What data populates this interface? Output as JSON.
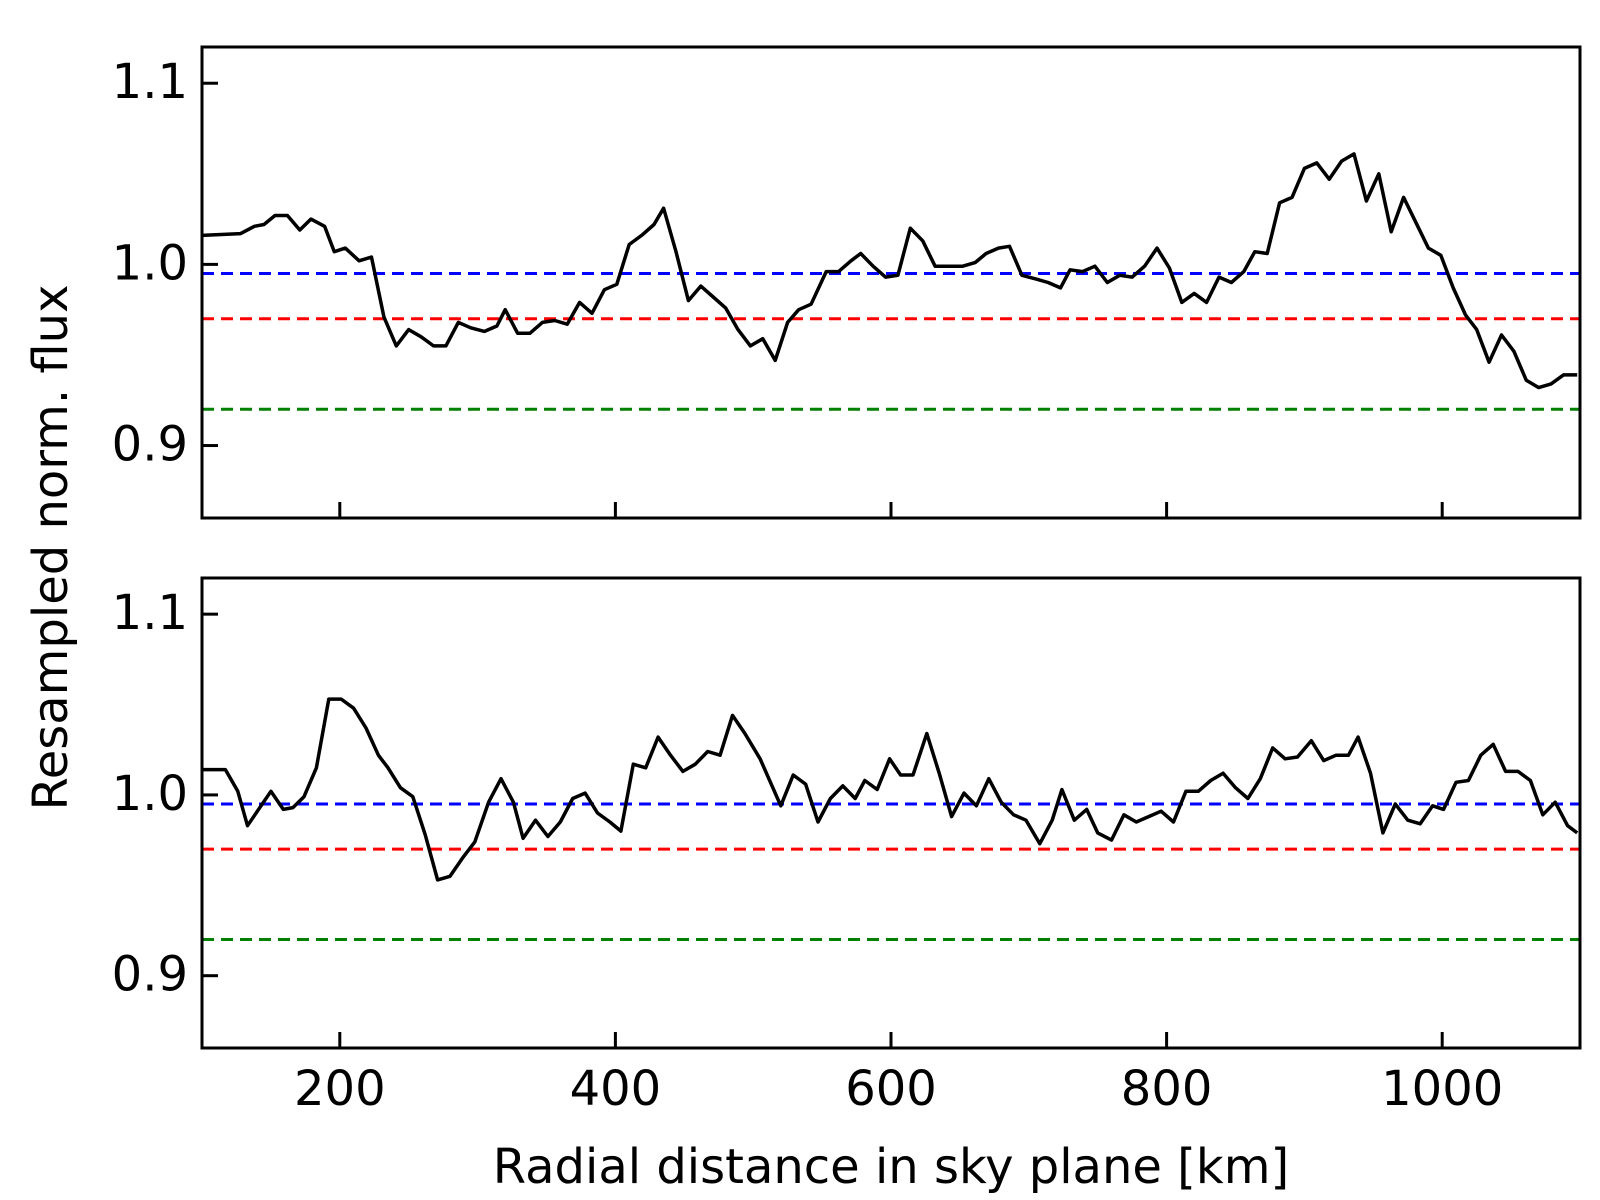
{
  "chart_data": [
    {
      "type": "line",
      "ylabel": "Resampled norm. flux",
      "xlim": [
        100,
        1100
      ],
      "xticks": [
        200,
        400,
        600,
        800,
        1000
      ],
      "show_xtick_labels": false,
      "ylim": [
        0.86,
        1.12
      ],
      "yticks": [
        0.9,
        {
          "value": 1,
          "label": "1.0"
        },
        1.1
      ],
      "x": [
        100,
        128,
        138,
        145,
        153,
        162,
        171,
        179,
        189,
        196,
        204,
        214,
        223,
        232,
        241,
        250,
        259,
        268,
        277,
        286,
        295,
        305,
        314,
        320,
        329,
        338,
        347,
        356,
        365,
        374,
        383,
        392,
        401,
        410,
        419,
        428,
        435,
        444,
        453,
        462,
        471,
        480,
        489,
        498,
        507,
        516,
        525,
        533,
        542,
        553,
        562,
        571,
        578,
        587,
        596,
        605,
        614,
        623,
        632,
        641,
        652,
        661,
        669,
        678,
        686,
        695,
        705,
        714,
        723,
        730,
        739,
        748,
        757,
        766,
        775,
        784,
        793,
        802,
        811,
        820,
        829,
        838,
        847,
        856,
        864,
        873,
        882,
        891,
        900,
        909,
        918,
        927,
        936,
        945,
        954,
        963,
        972,
        981,
        990,
        999,
        1008,
        1017,
        1025,
        1034,
        1043,
        1052,
        1061,
        1070,
        1079,
        1088,
        1098
      ],
      "values": [
        1.016,
        1.017,
        1.021,
        1.022,
        1.027,
        1.027,
        1.019,
        1.025,
        1.021,
        1.007,
        1.009,
        1.002,
        1.004,
        0.971,
        0.955,
        0.964,
        0.96,
        0.955,
        0.955,
        0.968,
        0.965,
        0.963,
        0.966,
        0.975,
        0.962,
        0.962,
        0.968,
        0.969,
        0.967,
        0.979,
        0.973,
        0.986,
        0.989,
        1.011,
        1.016,
        1.022,
        1.031,
        1.007,
        0.98,
        0.988,
        0.982,
        0.976,
        0.964,
        0.955,
        0.959,
        0.947,
        0.968,
        0.975,
        0.978,
        0.996,
        0.996,
        1.002,
        1.006,
        0.999,
        0.993,
        0.994,
        1.02,
        1.013,
        0.999,
        0.999,
        0.999,
        1.001,
        1.006,
        1.009,
        1.01,
        0.994,
        0.992,
        0.99,
        0.987,
        0.997,
        0.996,
        0.999,
        0.99,
        0.994,
        0.993,
        0.999,
        1.009,
        0.998,
        0.979,
        0.984,
        0.979,
        0.993,
        0.99,
        0.996,
        1.007,
        1.006,
        1.034,
        1.037,
        1.053,
        1.056,
        1.047,
        1.057,
        1.061,
        1.035,
        1.05,
        1.018,
        1.037,
        1.023,
        1.009,
        1.005,
        0.987,
        0.972,
        0.964,
        0.946,
        0.961,
        0.952,
        0.936,
        0.932,
        0.934,
        0.939,
        0.939
      ],
      "color": "#000000",
      "hlines": [
        {
          "value": 0.995,
          "color": "#0000ff"
        },
        {
          "value": 0.97,
          "color": "#ff0000"
        },
        {
          "value": 0.92,
          "color": "#008000"
        }
      ]
    },
    {
      "type": "line",
      "xlabel": "Radial distance in sky plane [km]",
      "xlim": [
        100,
        1100
      ],
      "xticks": [
        200,
        400,
        600,
        800,
        1000
      ],
      "show_xtick_labels": true,
      "ylim": [
        0.86,
        1.12
      ],
      "yticks": [
        0.9,
        {
          "value": 1,
          "label": "1.0"
        },
        1.1
      ],
      "x": [
        100,
        117,
        126,
        133,
        150,
        159,
        166,
        174,
        183,
        192,
        201,
        210,
        219,
        228,
        235,
        244,
        253,
        262,
        271,
        280,
        289,
        298,
        308,
        317,
        326,
        333,
        342,
        351,
        360,
        369,
        378,
        387,
        396,
        404,
        413,
        422,
        431,
        440,
        449,
        458,
        467,
        476,
        485,
        494,
        505,
        520,
        529,
        538,
        547,
        556,
        565,
        574,
        581,
        590,
        599,
        607,
        616,
        626,
        635,
        644,
        653,
        662,
        671,
        680,
        689,
        698,
        708,
        717,
        724,
        733,
        742,
        750,
        760,
        769,
        778,
        787,
        796,
        805,
        814,
        823,
        832,
        841,
        850,
        859,
        868,
        877,
        886,
        895,
        905,
        914,
        923,
        932,
        939,
        948,
        957,
        966,
        975,
        984,
        993,
        1001,
        1010,
        1019,
        1028,
        1037,
        1046,
        1055,
        1064,
        1073,
        1082,
        1091,
        1098
      ],
      "values": [
        1.014,
        1.014,
        1.002,
        0.983,
        1.002,
        0.992,
        0.993,
        0.999,
        1.015,
        1.053,
        1.053,
        1.048,
        1.037,
        1.022,
        1.015,
        1.004,
        0.999,
        0.978,
        0.953,
        0.955,
        0.965,
        0.974,
        0.996,
        1.009,
        0.996,
        0.976,
        0.986,
        0.977,
        0.985,
        0.998,
        1.001,
        0.99,
        0.985,
        0.98,
        1.017,
        1.015,
        1.032,
        1.022,
        1.013,
        1.017,
        1.024,
        1.022,
        1.044,
        1.034,
        1.02,
        0.994,
        1.011,
        1.006,
        0.985,
        0.998,
        1.005,
        0.998,
        1.008,
        1.003,
        1.02,
        1.011,
        1.011,
        1.034,
        1.012,
        0.988,
        1.001,
        0.994,
        1.009,
        0.996,
        0.989,
        0.986,
        0.973,
        0.986,
        1.003,
        0.986,
        0.992,
        0.979,
        0.975,
        0.989,
        0.985,
        0.988,
        0.991,
        0.985,
        1.002,
        1.002,
        1.008,
        1.012,
        1.004,
        0.998,
        1.009,
        1.026,
        1.02,
        1.021,
        1.03,
        1.019,
        1.022,
        1.022,
        1.032,
        1.012,
        0.979,
        0.995,
        0.986,
        0.984,
        0.994,
        0.992,
        1.007,
        1.008,
        1.022,
        1.028,
        1.013,
        1.013,
        1.008,
        0.989,
        0.996,
        0.983,
        0.979
      ],
      "color": "#000000",
      "hlines": [
        {
          "value": 0.995,
          "color": "#0000ff"
        },
        {
          "value": 0.97,
          "color": "#ff0000"
        },
        {
          "value": 0.92,
          "color": "#008000"
        }
      ]
    }
  ]
}
